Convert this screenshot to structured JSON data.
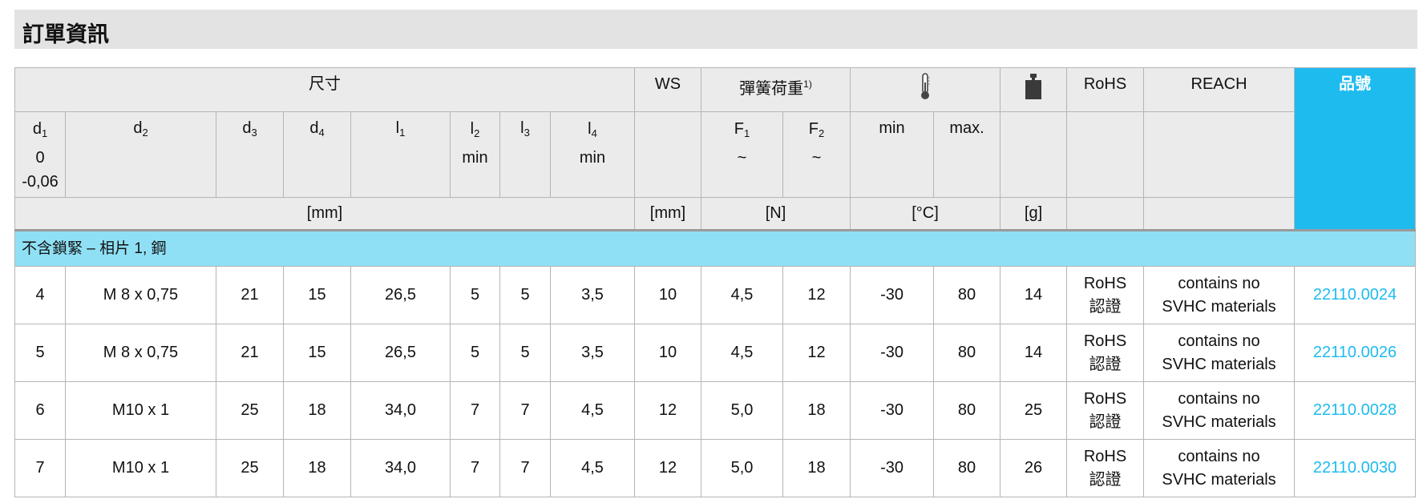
{
  "title": "訂單資訊",
  "header": {
    "dimensions": "尺寸",
    "ws": "WS",
    "spring_load": "彈簧荷重",
    "spring_load_note": "1)",
    "temperature_icon": "thermometer-icon",
    "weight_icon": "weight-icon",
    "rohs": "RoHS",
    "reach": "REACH",
    "part_no": "品號",
    "d1": {
      "base": "d",
      "sub": "1",
      "tol_upper": "0",
      "tol_lower": "-0,06"
    },
    "d2": {
      "base": "d",
      "sub": "2"
    },
    "d3": {
      "base": "d",
      "sub": "3"
    },
    "d4": {
      "base": "d",
      "sub": "4"
    },
    "l1": {
      "base": "l",
      "sub": "1"
    },
    "l2": {
      "base": "l",
      "sub": "2",
      "note": "min"
    },
    "l3": {
      "base": "l",
      "sub": "3"
    },
    "l4": {
      "base": "l",
      "sub": "4",
      "note": "min"
    },
    "f1": {
      "base": "F",
      "sub": "1",
      "note": "~"
    },
    "f2": {
      "base": "F",
      "sub": "2",
      "note": "~"
    },
    "tmin": "min",
    "tmax": "max.",
    "unit_mm": "[mm]",
    "unit_ws": "[mm]",
    "unit_n": "[N]",
    "unit_c": "[°C]",
    "unit_g": "[g]"
  },
  "section": "不含鎖緊 – 相片 1, 鋼",
  "colors": {
    "accent": "#1ebbee",
    "section_bg": "#8fe0f5",
    "header_bg": "#ebebeb",
    "title_bg": "#e3e3e3"
  },
  "rows": [
    {
      "d1": "4",
      "d2": "M  8 x 0,75",
      "d3": "21",
      "d4": "15",
      "l1": "26,5",
      "l2": "5",
      "l3": "5",
      "l4": "3,5",
      "ws": "10",
      "f1": "4,5",
      "f2": "12",
      "tmin": "-30",
      "tmax": "80",
      "g": "14",
      "rohs1": "RoHS",
      "rohs2": "認證",
      "reach1": "contains no",
      "reach2": "SVHC materials",
      "pn": "22110.0024"
    },
    {
      "d1": "5",
      "d2": "M  8 x 0,75",
      "d3": "21",
      "d4": "15",
      "l1": "26,5",
      "l2": "5",
      "l3": "5",
      "l4": "3,5",
      "ws": "10",
      "f1": "4,5",
      "f2": "12",
      "tmin": "-30",
      "tmax": "80",
      "g": "14",
      "rohs1": "RoHS",
      "rohs2": "認證",
      "reach1": "contains no",
      "reach2": "SVHC materials",
      "pn": "22110.0026"
    },
    {
      "d1": "6",
      "d2": "M10 x 1",
      "d3": "25",
      "d4": "18",
      "l1": "34,0",
      "l2": "7",
      "l3": "7",
      "l4": "4,5",
      "ws": "12",
      "f1": "5,0",
      "f2": "18",
      "tmin": "-30",
      "tmax": "80",
      "g": "25",
      "rohs1": "RoHS",
      "rohs2": "認證",
      "reach1": "contains no",
      "reach2": "SVHC materials",
      "pn": "22110.0028"
    },
    {
      "d1": "7",
      "d2": "M10 x 1",
      "d3": "25",
      "d4": "18",
      "l1": "34,0",
      "l2": "7",
      "l3": "7",
      "l4": "4,5",
      "ws": "12",
      "f1": "5,0",
      "f2": "18",
      "tmin": "-30",
      "tmax": "80",
      "g": "26",
      "rohs1": "RoHS",
      "rohs2": "認證",
      "reach1": "contains no",
      "reach2": "SVHC materials",
      "pn": "22110.0030"
    }
  ]
}
